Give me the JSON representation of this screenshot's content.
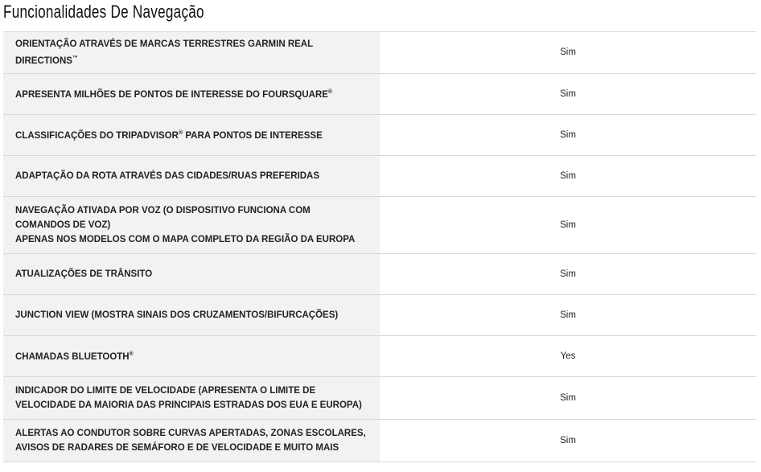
{
  "title": "Funcionalidades De Navegação",
  "rows": [
    {
      "label": "ORIENTAÇÃO ATRAVÉS DE MARCAS TERRESTRES GARMIN REAL DIRECTIONS",
      "sup": "™",
      "value": "Sim"
    },
    {
      "label": "APRESENTA MILHÕES DE PONTOS DE INTERESSE DO FOURSQUARE",
      "sup": "®",
      "value": "Sim"
    },
    {
      "label": "CLASSIFICAÇÕES DO TRIPADVISOR",
      "sup": "®",
      "label_after": " PARA PONTOS DE INTERESSE",
      "value": "Sim"
    },
    {
      "label": "ADAPTAÇÃO DA ROTA ATRAVÉS DAS CIDADES/RUAS PREFERIDAS",
      "value": "Sim"
    },
    {
      "label": "NAVEGAÇÃO ATIVADA POR VOZ (O DISPOSITIVO FUNCIONA COM COMANDOS DE VOZ)",
      "label_line2": "APENAS NOS MODELOS COM O MAPA COMPLETO DA REGIÃO DA EUROPA",
      "value": "Sim"
    },
    {
      "label": "ATUALIZAÇÕES DE TRÂNSITO",
      "value": "Sim"
    },
    {
      "label": "JUNCTION VIEW (MOSTRA SINAIS DOS CRUZAMENTOS/BIFURCAÇÕES)",
      "value": "Sim"
    },
    {
      "label": "CHAMADAS BLUETOOTH",
      "sup": "®",
      "value": "Yes"
    },
    {
      "label": "INDICADOR DO LIMITE DE VELOCIDADE (APRESENTA O LIMITE DE VELOCIDADE DA MAIORIA DAS PRINCIPAIS ESTRADAS DOS EUA E EUROPA)",
      "value": "Sim"
    },
    {
      "label": "ALERTAS AO CONDUTOR SOBRE CURVAS APERTADAS, ZONAS ESCOLARES, AVISOS DE RADARES DE SEMÁFORO E DE VELOCIDADE E MUITO MAIS",
      "value": "Sim"
    }
  ]
}
